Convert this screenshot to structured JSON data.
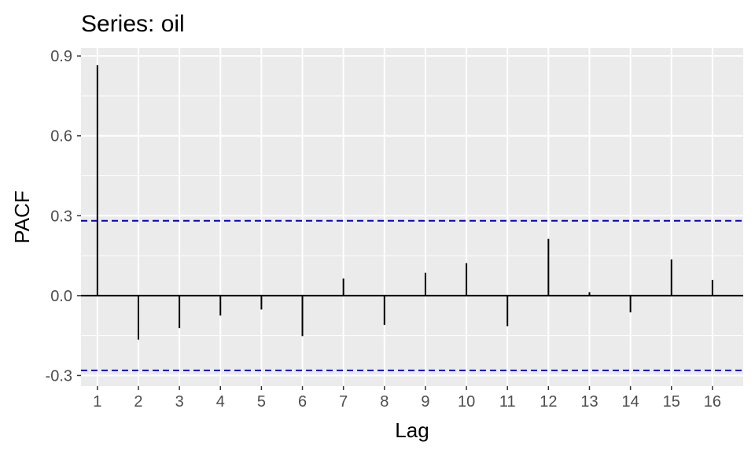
{
  "chart_data": {
    "type": "bar",
    "title": "Series: oil",
    "xlabel": "Lag",
    "ylabel": "PACF",
    "x": [
      1,
      2,
      3,
      4,
      5,
      6,
      7,
      8,
      9,
      10,
      11,
      12,
      13,
      14,
      15,
      16
    ],
    "values": [
      0.865,
      -0.165,
      -0.122,
      -0.075,
      -0.052,
      -0.152,
      0.064,
      -0.11,
      0.086,
      0.122,
      -0.115,
      0.213,
      0.013,
      -0.063,
      0.136,
      0.059
    ],
    "confidence_bounds": [
      0.281,
      -0.281
    ],
    "xlim": [
      0.6,
      16.75
    ],
    "ylim": [
      -0.34,
      0.93
    ],
    "yticks": [
      -0.3,
      0.0,
      0.3,
      0.6,
      0.9
    ],
    "ytick_labels": [
      "-0.3",
      "0.0",
      "0.3",
      "0.6",
      "0.9"
    ],
    "xtick_labels": [
      "1",
      "2",
      "3",
      "4",
      "5",
      "6",
      "7",
      "8",
      "9",
      "10",
      "11",
      "12",
      "13",
      "14",
      "15",
      "16"
    ],
    "grid": true,
    "colors": {
      "panel_background": "#ebebeb",
      "grid": "#ffffff",
      "bars": "#000000",
      "confidence_line": "#0000cc",
      "zero_line": "#000000"
    }
  }
}
